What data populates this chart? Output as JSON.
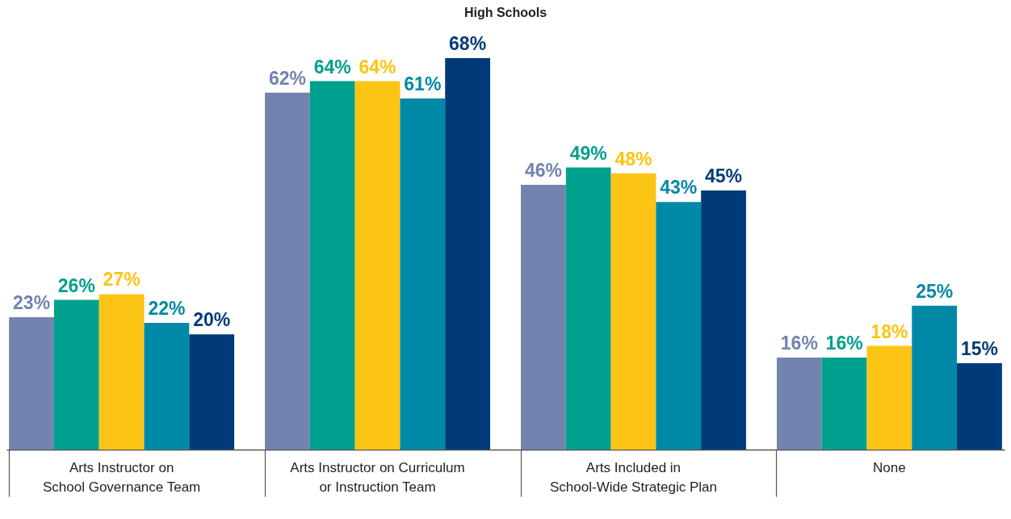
{
  "chart_data": {
    "type": "bar",
    "title": "High Schools",
    "categories": [
      "Arts Instructor on School Governance Team",
      "Arts Instructor on Curriculum or Instruction Team",
      "Arts Included in School-Wide Strategic Plan",
      "None"
    ],
    "series": [
      {
        "color": "#7283b0",
        "values": [
          23,
          62,
          46,
          16
        ],
        "value_labels": [
          "23%",
          "62%",
          "46%",
          "16%"
        ]
      },
      {
        "color": "#00a08e",
        "values": [
          26,
          64,
          49,
          16
        ],
        "value_labels": [
          "26%",
          "64%",
          "49%",
          "16%"
        ]
      },
      {
        "color": "#fcc414",
        "values": [
          27,
          64,
          48,
          18
        ],
        "value_labels": [
          "27%",
          "64%",
          "48%",
          "18%"
        ]
      },
      {
        "color": "#0089a7",
        "values": [
          22,
          61,
          43,
          25
        ],
        "value_labels": [
          "22%",
          "61%",
          "43%",
          "25%"
        ]
      },
      {
        "color": "#003a78",
        "values": [
          20,
          68,
          45,
          15
        ],
        "value_labels": [
          "20%",
          "68%",
          "45%",
          "15%"
        ]
      }
    ],
    "tick_labels": "x"
  }
}
